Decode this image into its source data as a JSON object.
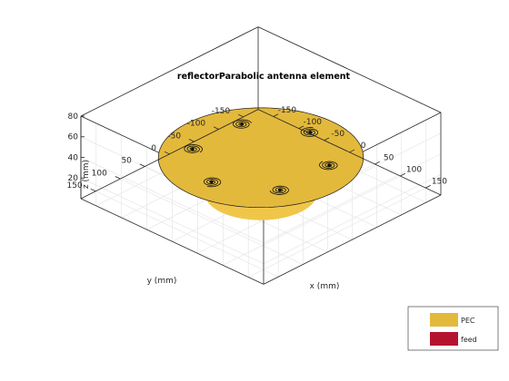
{
  "chart_data": {
    "type": "3d-surface",
    "title": "reflectorParabolic antenna element",
    "xlabel": "x (mm)",
    "ylabel": "y (mm)",
    "zlabel": "z (mm)",
    "xticks": [
      -150,
      -100,
      -50,
      0,
      50,
      100,
      150
    ],
    "yticks": [
      -150,
      -100,
      -50,
      0,
      50,
      100,
      150
    ],
    "zticks": [
      20,
      40,
      60,
      80
    ],
    "xlim": [
      -180,
      180
    ],
    "ylim": [
      -180,
      180
    ],
    "zlim": [
      0,
      80
    ],
    "grid": true,
    "reflector": {
      "radius": 145,
      "depth": 28
    },
    "feeds": [
      {
        "x": 0,
        "y": 100
      },
      {
        "x": 86,
        "y": 50
      },
      {
        "x": 86,
        "y": -50
      },
      {
        "x": 0,
        "y": -100
      },
      {
        "x": -86,
        "y": -50
      },
      {
        "x": -86,
        "y": 50
      }
    ],
    "legend": {
      "placement": "bottom-right",
      "entries": [
        {
          "label": "PEC",
          "color": "#e3b93c"
        },
        {
          "label": "feed",
          "color": "#b5142f"
        }
      ]
    }
  }
}
